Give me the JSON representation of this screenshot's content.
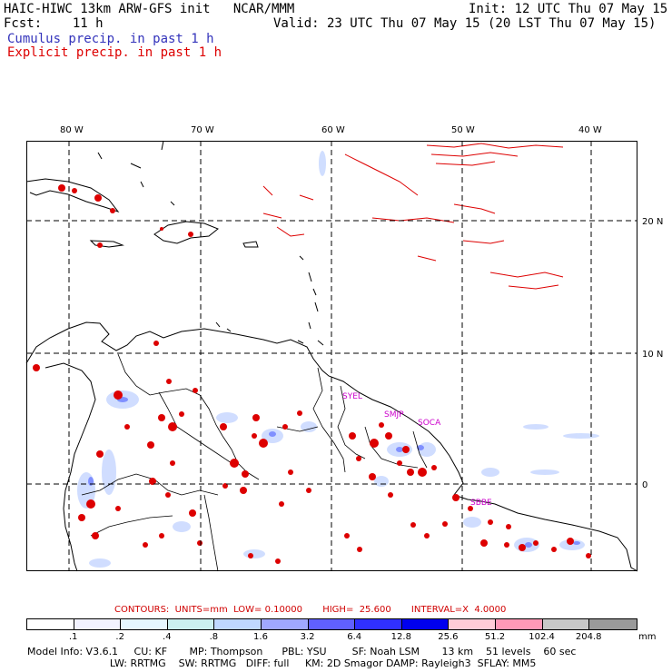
{
  "header": {
    "line1_left": "HAIC-HIWC 13km ARW-GFS init   NCAR/MMM",
    "line1_right": "Init: 12 UTC Thu 07 May 15",
    "line2_left": "Fcst:    11 h",
    "line2_right": "Valid: 23 UTC Thu 07 May 15 (20 LST Thu 07 May 15)",
    "line3": "Cumulus precip. in past 1 h",
    "line4": "Explicit precip. in past 1 h"
  },
  "colors": {
    "cumulus": "#3333bb",
    "explicit": "#dd0000",
    "site_labels": "#cc00cc"
  },
  "map": {
    "lon_labels": [
      "80 W",
      "70 W",
      "60 W",
      "50 W",
      "40 W"
    ],
    "lat_labels": [
      "20 N",
      "10 N",
      "0"
    ],
    "sites": [
      "SYEL",
      "SMJP",
      "SOCA",
      "SBBE"
    ]
  },
  "contours": {
    "text": "CONTOURS:  UNITS=mm  LOW= 0.10000       HIGH=  25.600       INTERVAL=X  4.0000"
  },
  "colorbar": {
    "colors": [
      "#ffffff",
      "#f2f2ff",
      "#e6f7ff",
      "#ccf0f0",
      "#c0d8ff",
      "#a0a8ff",
      "#6060ff",
      "#3030ff",
      "#0000ee",
      "#ffccd8",
      "#ff99b8",
      "#c8c8c8",
      "#9a9a9a",
      "#333333",
      "#ccaaff"
    ],
    "ticks": [
      ".1",
      ".2",
      ".4",
      ".8",
      "1.6",
      "3.2",
      "6.4",
      "12.8",
      "25.6",
      "51.2",
      "102.4",
      "204.8"
    ],
    "unit": "mm"
  },
  "footer": {
    "line1": "Model Info: V3.6.1     CU: KF       MP: Thompson      PBL: YSU        SF: Noah LSM       13 km    51 levels    60 sec",
    "line2": "                          LW: RRTMG    SW: RRTMG   DIFF: full     KM: 2D Smagor DAMP: Rayleigh3  SFLAY: MM5"
  }
}
